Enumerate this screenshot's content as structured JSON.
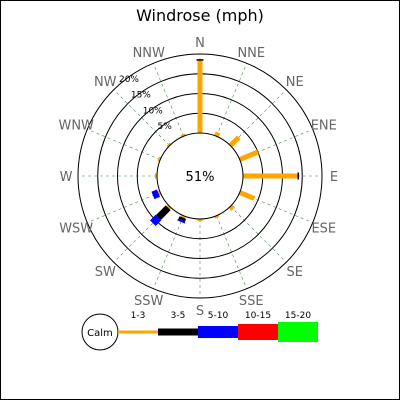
{
  "chart_data": {
    "type": "windrose",
    "title": "Windrose (mph)",
    "directions": [
      "N",
      "NNE",
      "NE",
      "ENE",
      "E",
      "ESE",
      "SE",
      "SSE",
      "S",
      "SSW",
      "SW",
      "WSW",
      "W",
      "WNW",
      "NW",
      "NNW"
    ],
    "ring_labels": [
      "5%",
      "10%",
      "15%",
      "20%"
    ],
    "rings": [
      5,
      10,
      15,
      20
    ],
    "calm_text": "51%",
    "calm_label": "Calm",
    "speed_bins": [
      {
        "label": "1-3",
        "color": "#FFA500"
      },
      {
        "label": "3-5",
        "color": "#000000"
      },
      {
        "label": "5-10",
        "color": "#0000FF"
      },
      {
        "label": "10-15",
        "color": "#FF0000"
      },
      {
        "label": "15-20",
        "color": "#00FF00"
      }
    ],
    "frequencies": [
      [
        18.5,
        0,
        0,
        0,
        0
      ],
      [
        1.0,
        0,
        0,
        0,
        0
      ],
      [
        3.0,
        0,
        0,
        0,
        0
      ],
      [
        5.0,
        0,
        0,
        0,
        0
      ],
      [
        14.0,
        0,
        0,
        0,
        0
      ],
      [
        4.0,
        0,
        0,
        0,
        0
      ],
      [
        1.0,
        0,
        0,
        0,
        0
      ],
      [
        0.5,
        0,
        0,
        0,
        0
      ],
      [
        0.5,
        0,
        0,
        0,
        0
      ],
      [
        0.5,
        0.7,
        0.5,
        0,
        0
      ],
      [
        0.5,
        3.5,
        2.0,
        0,
        0
      ],
      [
        0.5,
        0,
        1.5,
        0,
        0
      ],
      [
        0.5,
        0,
        0,
        0,
        0
      ],
      [
        0.5,
        0,
        0,
        0,
        0
      ],
      [
        0.5,
        0,
        0,
        0,
        0
      ],
      [
        0.5,
        0,
        0,
        0,
        0
      ]
    ],
    "error_bars": [
      0,
      4
    ]
  }
}
